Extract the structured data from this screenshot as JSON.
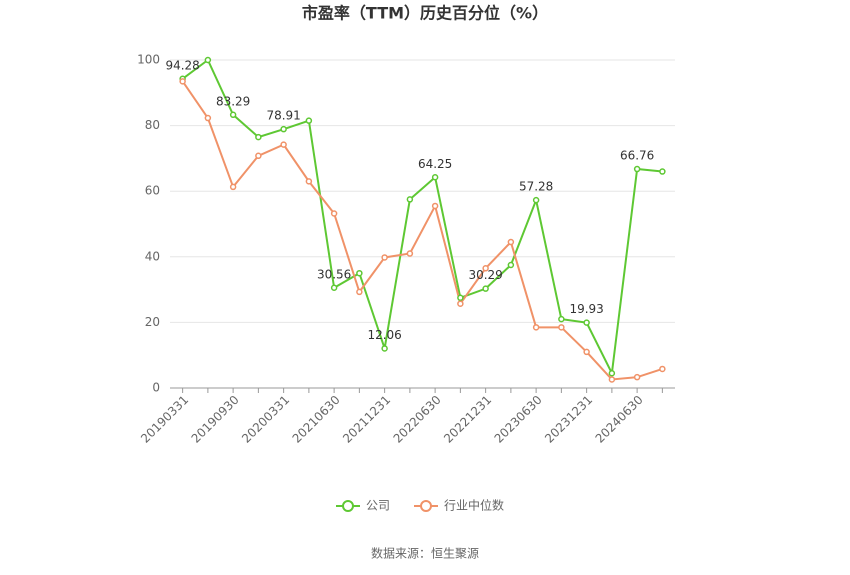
{
  "chart_data": {
    "type": "line",
    "title": "市盈率（TTM）历史百分位（%）",
    "source": "数据来源：恒生聚源",
    "categories": [
      "20190331",
      null,
      "20190930",
      null,
      "20200331",
      null,
      "20210630",
      null,
      "20211231",
      null,
      "20220630",
      null,
      "20221231",
      null,
      "20230630",
      null,
      "20231231",
      null,
      "20240630",
      null
    ],
    "series": [
      {
        "name": "公司",
        "color": "#5ec833",
        "values": [
          94.28,
          100,
          83.29,
          76.5,
          78.91,
          81.5,
          30.56,
          35,
          12.06,
          57.5,
          64.25,
          27.5,
          30.29,
          37.5,
          57.28,
          21,
          19.93,
          4.5,
          66.76,
          66.0
        ],
        "value_labels": [
          "94.28",
          null,
          "83.29",
          null,
          "78.91",
          null,
          "30.56",
          null,
          "12.06",
          null,
          "64.25",
          null,
          "30.29",
          null,
          "57.28",
          null,
          "19.93",
          null,
          "66.76",
          null
        ]
      },
      {
        "name": "行业中位数",
        "color": "#f09268",
        "values": [
          93.5,
          82.3,
          61.3,
          70.8,
          74.2,
          63,
          53.2,
          29.3,
          39.8,
          41,
          55.5,
          25.7,
          36.5,
          44.5,
          18.5,
          18.5,
          11,
          2.6,
          3.3,
          5.8
        ]
      }
    ],
    "ylim": [
      0,
      100
    ],
    "yticks": [
      0,
      20,
      40,
      60,
      80,
      100
    ],
    "grid": true,
    "legend": "bottom"
  }
}
